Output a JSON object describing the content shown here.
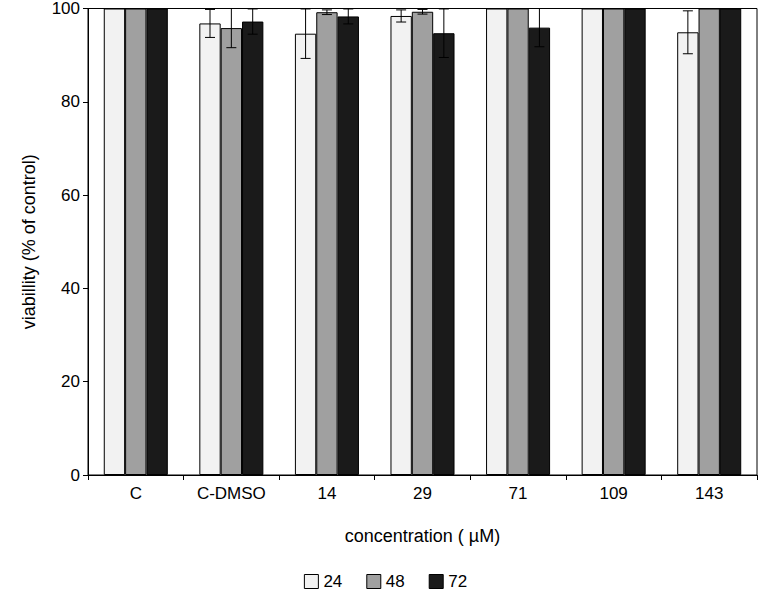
{
  "chart_data": {
    "type": "bar",
    "x_label": "concentration ( µM)",
    "y_label": "viabillity (% of control)",
    "categories": [
      "C",
      "C-DMSO",
      "14",
      "29",
      "71",
      "109",
      "143"
    ],
    "series": [
      {
        "name": "24",
        "color": "#f2f2f2",
        "values": [
          100,
          96.8,
          94.6,
          98.4,
          100,
          100,
          94.9
        ],
        "errors": [
          0,
          3,
          5.3,
          1.3,
          0,
          0,
          4.6
        ]
      },
      {
        "name": "48",
        "color": "#a0a0a0",
        "values": [
          100,
          95.8,
          99.2,
          99.3,
          100,
          100,
          100
        ],
        "errors": [
          0,
          4.2,
          0.5,
          0.5,
          0,
          0,
          0
        ]
      },
      {
        "name": "72",
        "color": "#1a1a1a",
        "values": [
          100,
          97.2,
          98.3,
          94.7,
          95.9,
          100,
          100
        ],
        "errors": [
          0,
          2.7,
          1.6,
          5.2,
          4.1,
          0,
          0
        ]
      }
    ],
    "ylim": [
      0,
      100
    ],
    "yticks": [
      0,
      20,
      40,
      60,
      80,
      100
    ],
    "grid": false,
    "legend": "bottom"
  }
}
